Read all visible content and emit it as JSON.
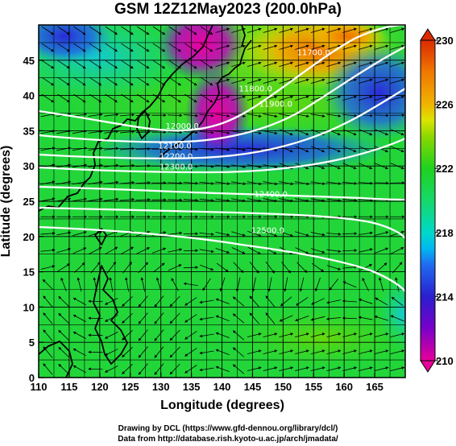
{
  "title": "GSM 12Z12May2023 (200.0hPa)",
  "chart_data": {
    "type": "heatmap",
    "title": "GSM 12Z12May2023 (200.0hPa)",
    "xlabel": "Longitude (degrees)",
    "ylabel": "Latitude  (degrees)",
    "xlim": [
      110,
      170
    ],
    "ylim": [
      0,
      50
    ],
    "x_ticks": [
      "110",
      "115",
      "120",
      "125",
      "130",
      "135",
      "140",
      "145",
      "150",
      "155",
      "160",
      "165"
    ],
    "y_ticks": [
      "0",
      "5",
      "10",
      "15",
      "20",
      "25",
      "30",
      "35",
      "40",
      "45"
    ],
    "grid": true,
    "colorbar": {
      "ticks": [
        "230",
        "226",
        "222",
        "218",
        "214",
        "210"
      ],
      "min": 210,
      "max": 230,
      "stops": [
        {
          "v": 210,
          "c": "#e8009a"
        },
        {
          "v": 212,
          "c": "#7a00c8"
        },
        {
          "v": 214,
          "c": "#2a1ecf"
        },
        {
          "v": 216,
          "c": "#1f6cf0"
        },
        {
          "v": 217,
          "c": "#00b8f0"
        },
        {
          "v": 218,
          "c": "#00d8c8"
        },
        {
          "v": 220,
          "c": "#16d86a"
        },
        {
          "v": 222,
          "c": "#1ed21e"
        },
        {
          "v": 224,
          "c": "#8cd800"
        },
        {
          "v": 225,
          "c": "#dce400"
        },
        {
          "v": 226,
          "c": "#f0b400"
        },
        {
          "v": 228,
          "c": "#f07800"
        },
        {
          "v": 230,
          "c": "#dc2a00"
        }
      ]
    },
    "contour_labels": [
      {
        "text": "12000.0",
        "lon": 133.5,
        "lat": 35.3
      },
      {
        "text": "11900.0",
        "lon": 148.8,
        "lat": 38.4
      },
      {
        "text": "11800.0",
        "lon": 145.5,
        "lat": 40.6
      },
      {
        "text": "11700.0",
        "lon": 155.0,
        "lat": 45.7
      },
      {
        "text": "12100.0",
        "lon": 132.3,
        "lat": 32.5
      },
      {
        "text": "12200.0",
        "lon": 132.5,
        "lat": 31.0
      },
      {
        "text": "12300.0",
        "lon": 132.5,
        "lat": 29.5
      },
      {
        "text": "12400.0",
        "lon": 148.0,
        "lat": 25.6
      },
      {
        "text": "12500.0",
        "lon": 147.5,
        "lat": 20.5
      }
    ]
  },
  "credits": {
    "line1": "Drawing by DCL (https://www.gfd-dennou.org/library/dcl/)",
    "line2": "Data from http://database.rish.kyoto-u.ac.jp/arch/jmadata/"
  }
}
